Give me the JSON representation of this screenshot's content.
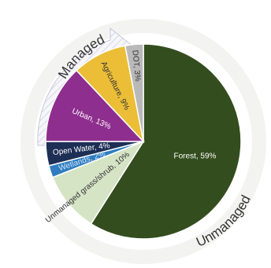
{
  "chart_data": {
    "type": "pie",
    "title": "",
    "slices": [
      {
        "label": "Forest, 59%",
        "value": 59,
        "color": "#334d1e",
        "text_color": "#ffffff"
      },
      {
        "label": "Unmanaged grass/shrub, 10%",
        "value": 10,
        "color": "#d6e4c6",
        "text_color": "#333333"
      },
      {
        "label": "Wetlands, 2%",
        "value": 2,
        "color": "#2f7dc0",
        "text_color": "#cfe3f7"
      },
      {
        "label": "Open Water, 4%",
        "value": 4,
        "color": "#1d2f55",
        "text_color": "#ffffff"
      },
      {
        "label": "Urban, 13%",
        "value": 13,
        "color": "#8e2e8e",
        "text_color": "#ffffff"
      },
      {
        "label": "Agriculture, 9%",
        "value": 9,
        "color": "#ecbe37",
        "text_color": "#333333"
      },
      {
        "label": "DOT, 3%",
        "value": 3,
        "color": "#b9b9b9",
        "text_color": "#333333"
      }
    ],
    "groups": [
      {
        "label": "Managed",
        "members": [
          "Open Water, 4%",
          "Urban, 13%",
          "Agriculture, 9%",
          "DOT, 3%"
        ]
      },
      {
        "label": "Unmanaged",
        "members": [
          "Forest, 59%",
          "Unmanaged grass/shrub, 10%",
          "Wetlands, 2%"
        ]
      }
    ]
  }
}
